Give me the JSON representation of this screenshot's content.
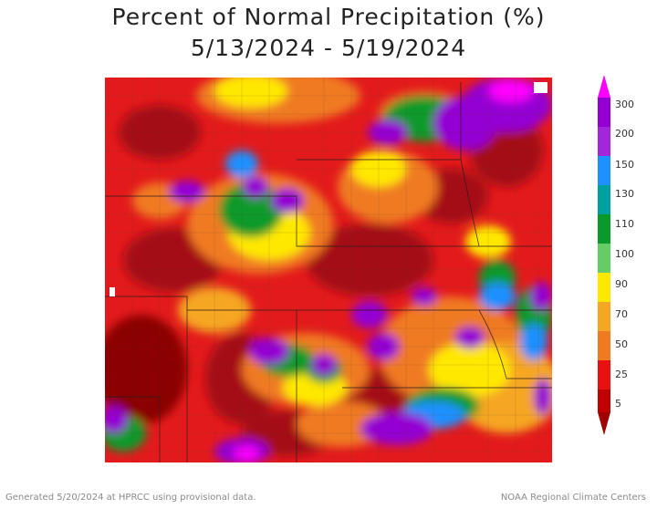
{
  "title_line1": "Percent of Normal Precipitation (%)",
  "title_line2": "5/13/2024 - 5/19/2024",
  "legend": {
    "labels": [
      "300",
      "200",
      "150",
      "130",
      "110",
      "100",
      "90",
      "70",
      "50",
      "25",
      "5"
    ],
    "colors": {
      "300": "#ff00ff",
      "200": "#9400d3",
      "150": "#1e90ff",
      "130": "#00a0a0",
      "110": "#0a9a2a",
      "100": "#66cc66",
      "90": "#ffe800",
      "70": "#f5a623",
      "50": "#f07a20",
      "25": "#e81010",
      "5": "#a00000"
    }
  },
  "footer_left": "Generated 5/20/2024 at HPRCC using provisional data.",
  "footer_right": "NOAA Regional Climate Centers"
}
